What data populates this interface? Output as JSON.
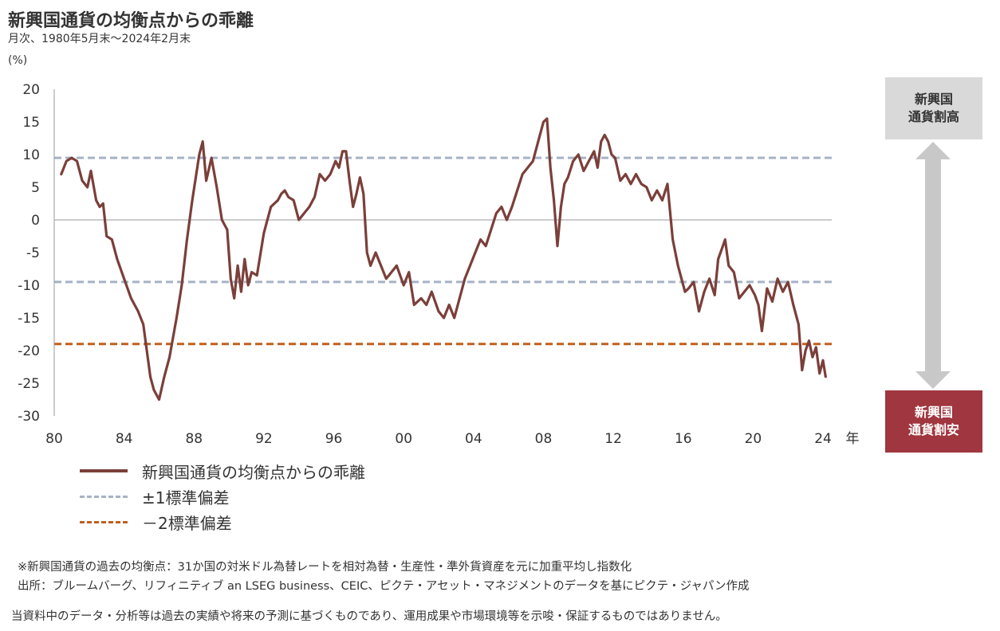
{
  "header": {
    "title": "新興国通貨の均衡点からの乖離",
    "subtitle": "月次、1980年5月末～2024年2月末",
    "unit": "(%)"
  },
  "side_labels": {
    "high": "新興国\n通貨割高",
    "low": "新興国\n通貨割安",
    "colors": {
      "high_bg": "#d9d9d9",
      "low_bg": "#a0363f",
      "arrow": "#c8c8c8"
    }
  },
  "legend": {
    "main": "新興国通貨の均衡点からの乖離",
    "sd1": "±1標準偏差",
    "sd2": "－2標準偏差"
  },
  "notes": {
    "n1": "※新興国通貨の過去の均衡点：31か国の対米ドル為替レートを相対為替・生産性・準外貨資産を元に加重平均し指数化",
    "n2": "出所：ブルームバーグ、リフィニティブ an LSEG business、CEIC、ピクテ・アセット・マネジメントのデータを基にピクテ・ジャパン作成",
    "n3": "当資料中のデータ・分析等は過去の実績や将来の予測に基づくものであり、運用成果や市場環境等を示唆・保証するものではありません。"
  },
  "chart_data": {
    "type": "line",
    "title": "新興国通貨の均衡点からの乖離",
    "subtitle": "月次、1980年5月末～2024年2月末",
    "ylabel": "(%)",
    "xlabel": "年",
    "ylim": [
      -30,
      20
    ],
    "yticks": [
      20,
      15,
      10,
      5,
      0,
      -5,
      -10,
      -15,
      -20,
      -25,
      -30
    ],
    "xlim": [
      1980,
      2024.5
    ],
    "xticks": [
      "80",
      "84",
      "88",
      "92",
      "96",
      "00",
      "04",
      "08",
      "12",
      "16",
      "20",
      "24"
    ],
    "xtick_years": [
      1980,
      1984,
      1988,
      1992,
      1996,
      2000,
      2004,
      2008,
      2012,
      2016,
      2020,
      2024
    ],
    "reference_lines": [
      {
        "name": "±1標準偏差",
        "values": [
          9.5,
          -9.5
        ],
        "color": "#a6b3c6",
        "style": "dashed"
      },
      {
        "name": "－2標準偏差",
        "values": [
          -19
        ],
        "color": "#c0601e",
        "style": "dashed"
      }
    ],
    "zero_line": true,
    "series": [
      {
        "name": "新興国通貨の均衡点からの乖離",
        "color": "#7b3f3a",
        "x": [
          1980.4,
          1980.7,
          1981.0,
          1981.3,
          1981.6,
          1981.9,
          1982.1,
          1982.4,
          1982.6,
          1982.8,
          1983.0,
          1983.3,
          1983.6,
          1984.0,
          1984.4,
          1984.8,
          1985.1,
          1985.3,
          1985.5,
          1985.7,
          1986.0,
          1986.3,
          1986.6,
          1987.0,
          1987.3,
          1987.6,
          1987.9,
          1988.1,
          1988.3,
          1988.5,
          1988.7,
          1989.0,
          1989.3,
          1989.6,
          1989.9,
          1990.1,
          1990.3,
          1990.5,
          1990.7,
          1990.9,
          1991.1,
          1991.3,
          1991.6,
          1992.0,
          1992.4,
          1992.8,
          1993.0,
          1993.2,
          1993.4,
          1993.7,
          1994.0,
          1994.3,
          1994.6,
          1994.9,
          1995.2,
          1995.5,
          1995.8,
          1996.1,
          1996.3,
          1996.5,
          1996.7,
          1996.9,
          1997.1,
          1997.3,
          1997.5,
          1997.7,
          1997.9,
          1998.1,
          1998.4,
          1998.7,
          1999.0,
          1999.3,
          1999.6,
          2000.0,
          2000.3,
          2000.6,
          2001.0,
          2001.3,
          2001.6,
          2002.0,
          2002.3,
          2002.6,
          2002.9,
          2003.2,
          2003.5,
          2003.8,
          2004.1,
          2004.4,
          2004.7,
          2005.0,
          2005.3,
          2005.6,
          2005.9,
          2006.2,
          2006.5,
          2006.8,
          2007.1,
          2007.4,
          2007.7,
          2008.0,
          2008.2,
          2008.4,
          2008.6,
          2008.8,
          2009.0,
          2009.2,
          2009.4,
          2009.7,
          2010.0,
          2010.3,
          2010.6,
          2010.9,
          2011.1,
          2011.3,
          2011.5,
          2011.7,
          2011.9,
          2012.1,
          2012.4,
          2012.7,
          2013.0,
          2013.3,
          2013.6,
          2013.9,
          2014.2,
          2014.5,
          2014.8,
          2015.1,
          2015.4,
          2015.7,
          2015.9,
          2016.1,
          2016.3,
          2016.6,
          2016.9,
          2017.2,
          2017.5,
          2017.8,
          2018.0,
          2018.2,
          2018.4,
          2018.6,
          2018.9,
          2019.2,
          2019.5,
          2019.8,
          2020.1,
          2020.3,
          2020.5,
          2020.8,
          2021.1,
          2021.4,
          2021.7,
          2022.0,
          2022.3,
          2022.6,
          2022.8,
          2023.0,
          2023.2,
          2023.4,
          2023.6,
          2023.8,
          2024.0,
          2024.15
        ],
        "y": [
          7,
          9,
          9.5,
          9,
          6,
          5,
          7.5,
          3,
          2,
          2.5,
          -2.5,
          -3,
          -6,
          -9,
          -12,
          -14,
          -16,
          -20,
          -24,
          -26,
          -27.5,
          -24,
          -21,
          -15,
          -10,
          -3,
          3,
          6.5,
          10,
          12,
          6,
          9.5,
          5,
          0,
          -1.5,
          -9,
          -12,
          -7,
          -11,
          -6,
          -10,
          -8,
          -8.5,
          -2,
          2,
          3,
          4,
          4.5,
          3.5,
          3,
          0,
          1,
          2,
          3.5,
          7,
          6,
          7,
          9,
          8,
          10.5,
          10.5,
          6,
          2,
          4,
          6.5,
          4,
          -5,
          -7,
          -5,
          -7,
          -9,
          -8,
          -7,
          -10,
          -8,
          -13,
          -12,
          -13,
          -11,
          -14,
          -15,
          -13,
          -15,
          -12,
          -9,
          -7,
          -5,
          -3,
          -4,
          -1.5,
          1,
          2,
          0,
          2,
          4.5,
          7,
          8,
          9,
          12,
          15,
          15.5,
          8,
          3,
          -4,
          2,
          5.5,
          6.5,
          9,
          10,
          7.5,
          9,
          10.5,
          8,
          12,
          13,
          12,
          10,
          9.5,
          6,
          7,
          5.5,
          7,
          5.5,
          5,
          3,
          4.5,
          3,
          5.5,
          -3,
          -7,
          -9,
          -11,
          -10.5,
          -9.5,
          -14,
          -11,
          -9,
          -11.5,
          -6,
          -4.5,
          -3,
          -7,
          -8,
          -12,
          -11,
          -10,
          -11.5,
          -13,
          -17,
          -10.5,
          -12.5,
          -9,
          -11,
          -9.5,
          -13,
          -16,
          -23,
          -20,
          -18.5,
          -21,
          -19.5,
          -23.5,
          -21.5,
          -24
        ]
      }
    ]
  }
}
